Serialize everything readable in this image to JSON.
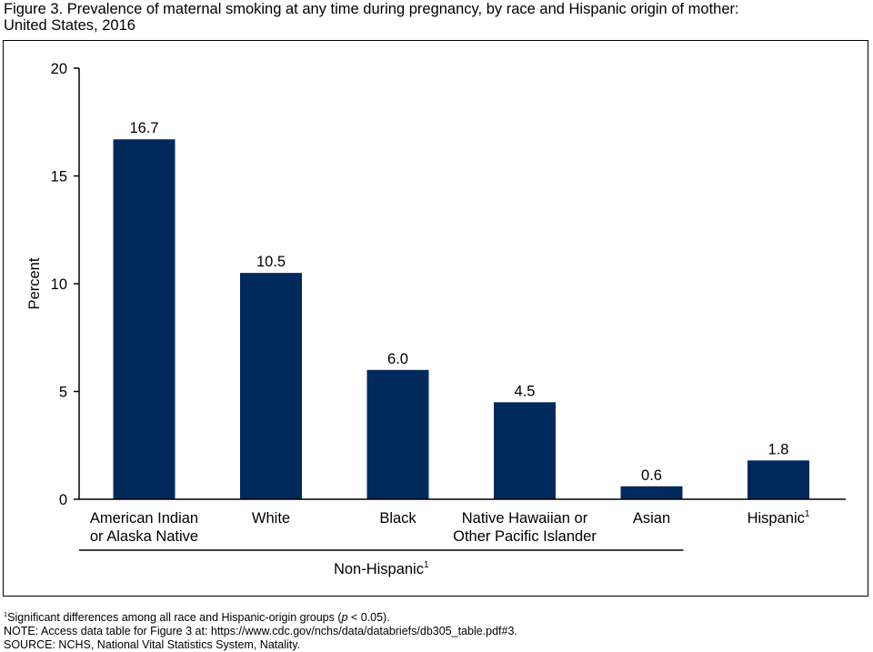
{
  "title": {
    "line1": "Figure 3. Prevalence of maternal smoking at any time during pregnancy, by race and Hispanic origin of mother:",
    "line2": "United States, 2016"
  },
  "chart_data": {
    "type": "bar",
    "categories": [
      [
        "American Indian",
        "or Alaska Native"
      ],
      [
        "White"
      ],
      [
        "Black"
      ],
      [
        "Native Hawaiian or",
        "Other Pacific Islander"
      ],
      [
        "Asian"
      ],
      [
        "Hispanic"
      ]
    ],
    "category_superscripts": [
      "",
      "",
      "",
      "",
      "",
      "1"
    ],
    "values": [
      16.7,
      10.5,
      6.0,
      4.5,
      0.6,
      1.8
    ],
    "value_labels": [
      "16.7",
      "10.5",
      "6.0",
      "4.5",
      "0.6",
      "1.8"
    ],
    "ylabel": "Percent",
    "ylim": [
      0,
      20
    ],
    "yticks": [
      0,
      5,
      10,
      15,
      20
    ],
    "group_label": {
      "text": "Non-Hispanic",
      "superscript": "1",
      "spans_categories": [
        0,
        4
      ]
    },
    "bar_color": "#002a5c",
    "grid": false,
    "legend": "none"
  },
  "footnotes": {
    "sig": {
      "sup": "1",
      "before": "Significant differences among all race and Hispanic-origin groups (",
      "p": "p",
      "after": " < 0.05)."
    },
    "note": "NOTE: Access data table for Figure 3 at: https://www.cdc.gov/nchs/data/databriefs/db305_table.pdf#3.",
    "source": "SOURCE: NCHS, National Vital Statistics System, Natality."
  }
}
